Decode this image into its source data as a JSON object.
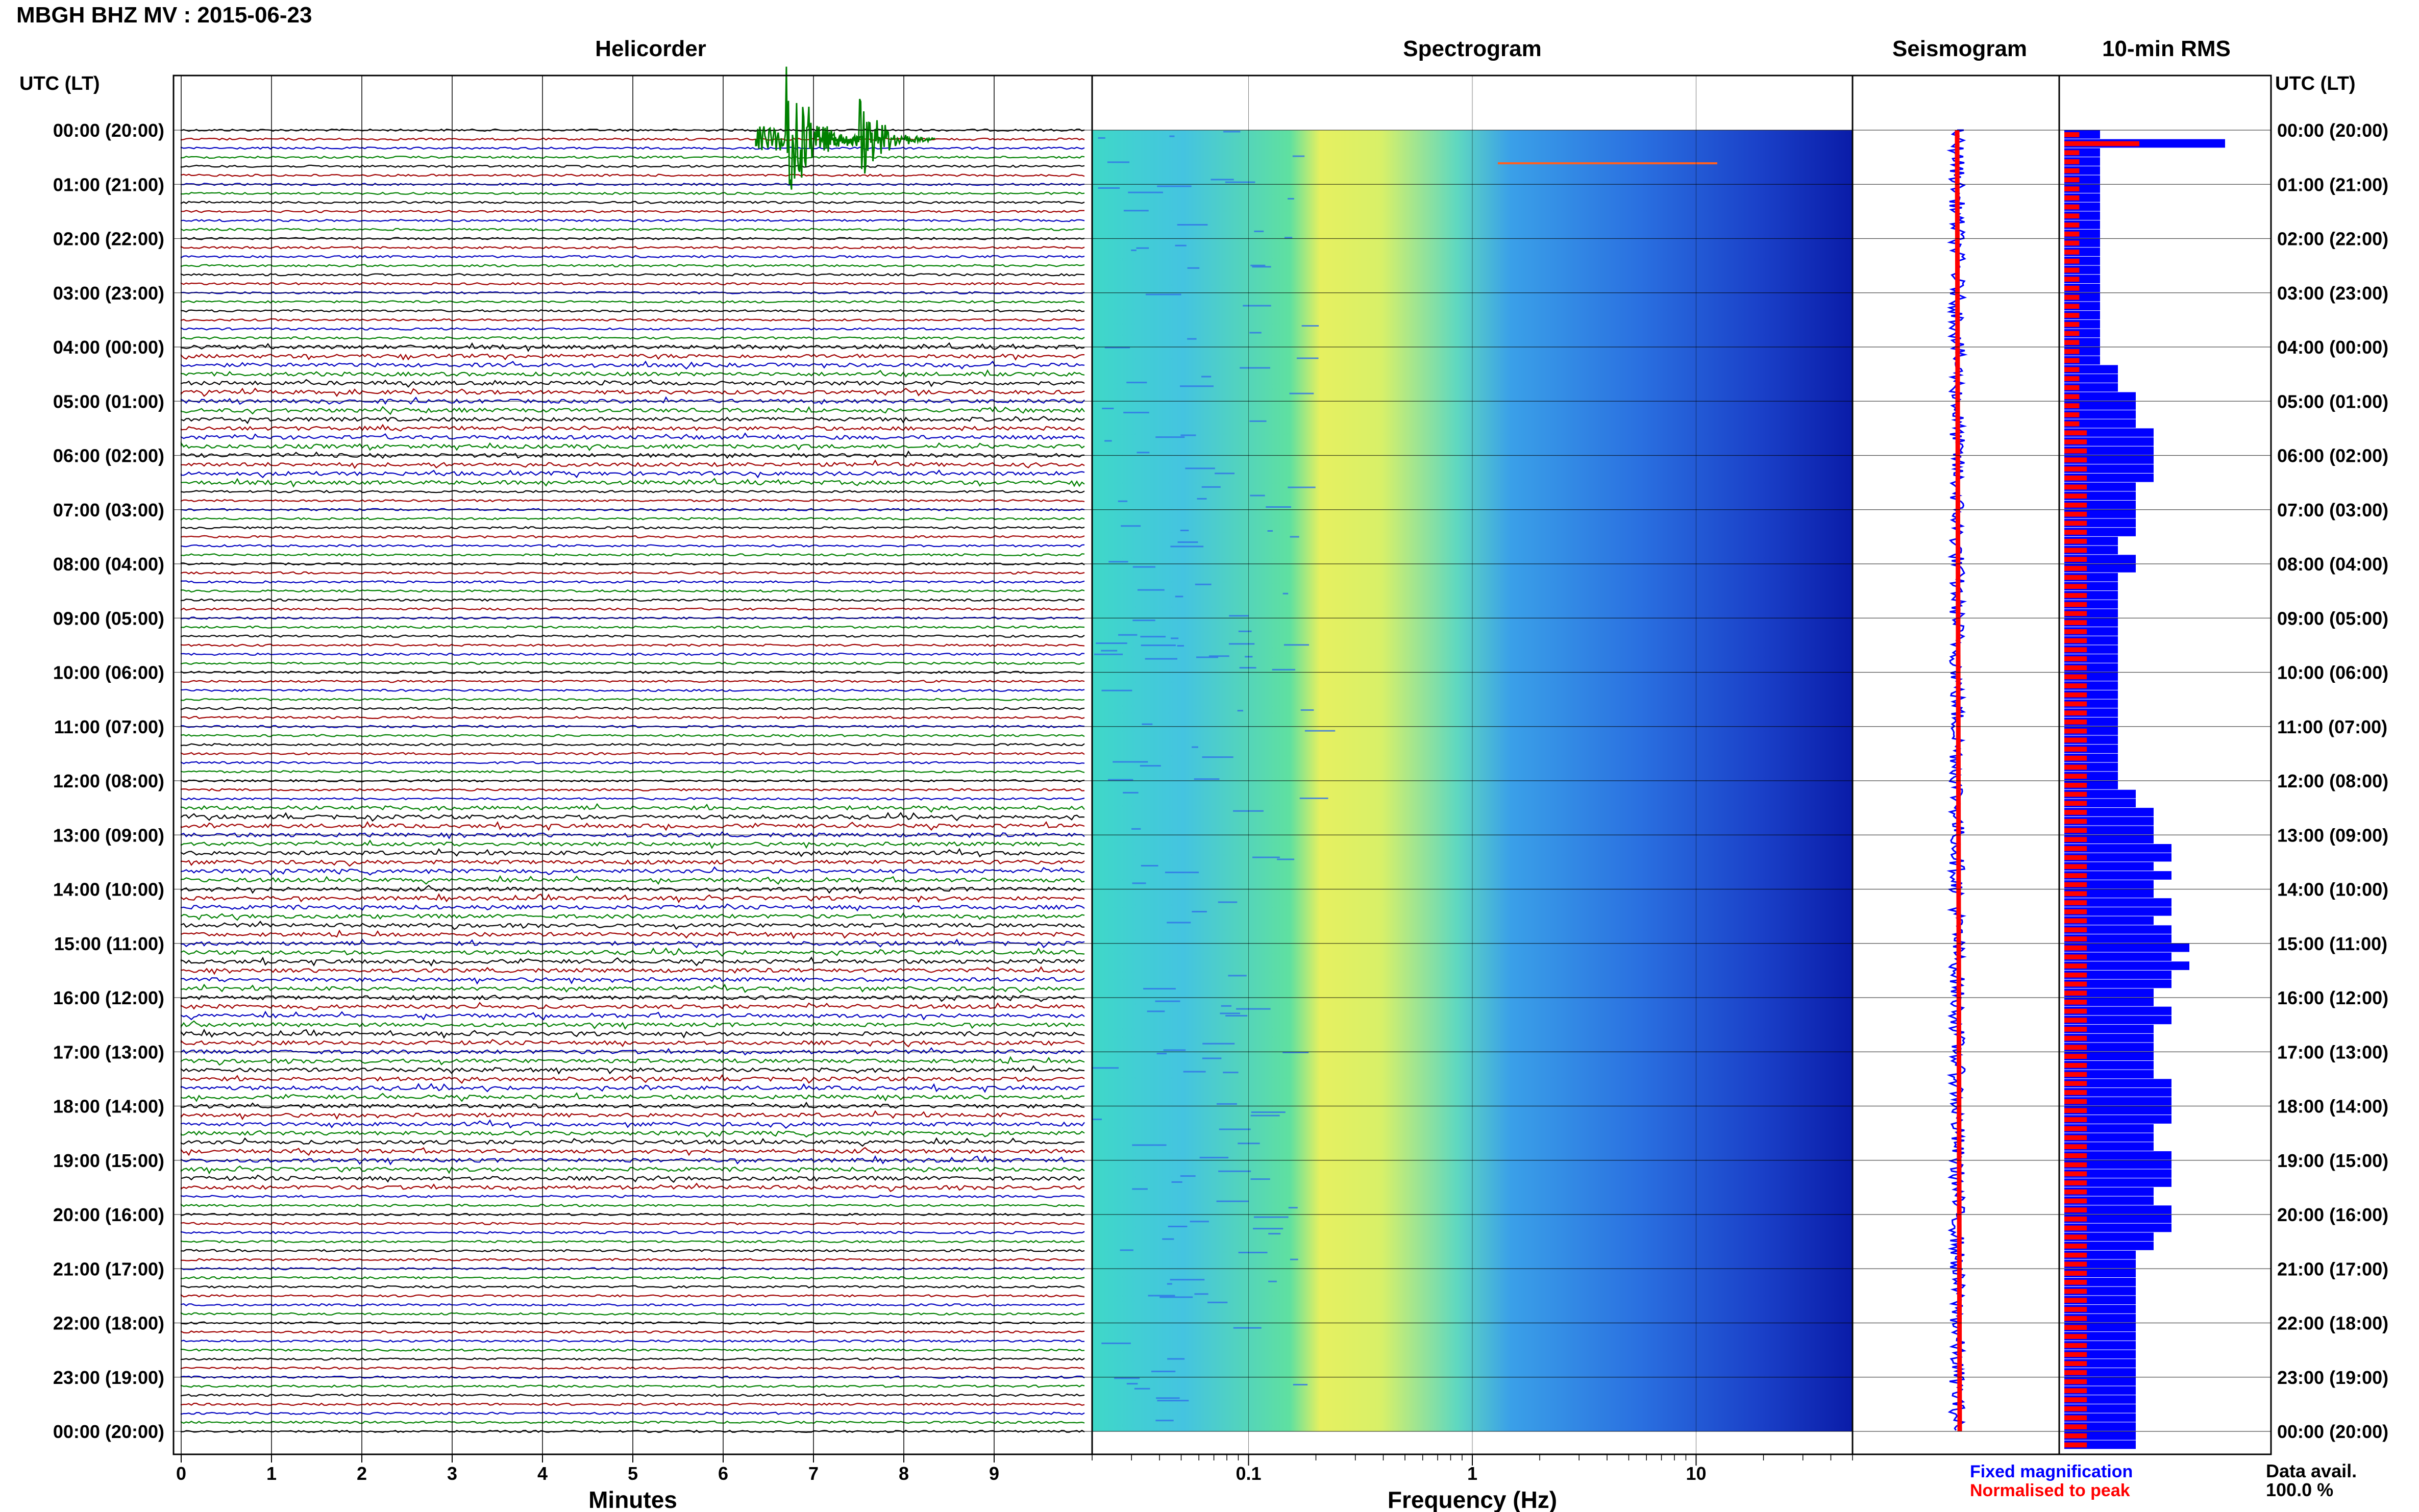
{
  "station_title": "MBGH BHZ MV : 2015-06-23",
  "panels": {
    "helicorder": "Helicorder",
    "spectrogram": "Spectrogram",
    "seismogram": "Seismogram",
    "rms": "10-min RMS"
  },
  "time_axis_header": "UTC (LT)",
  "time_labels": [
    "00:00 (20:00)",
    "01:00 (21:00)",
    "02:00 (22:00)",
    "03:00 (23:00)",
    "04:00 (00:00)",
    "05:00 (01:00)",
    "06:00 (02:00)",
    "07:00 (03:00)",
    "08:00 (04:00)",
    "09:00 (05:00)",
    "10:00 (06:00)",
    "11:00 (07:00)",
    "12:00 (08:00)",
    "13:00 (09:00)",
    "14:00 (10:00)",
    "15:00 (11:00)",
    "16:00 (12:00)",
    "17:00 (13:00)",
    "18:00 (14:00)",
    "19:00 (15:00)",
    "20:00 (16:00)",
    "21:00 (17:00)",
    "22:00 (18:00)",
    "23:00 (19:00)",
    "00:00 (20:00)"
  ],
  "helicorder_xlabel": "Minutes",
  "helicorder_xticks": [
    "0",
    "1",
    "2",
    "3",
    "4",
    "5",
    "6",
    "7",
    "8",
    "9"
  ],
  "spectrogram_xlabel": "Frequency (Hz)",
  "spectrogram_xticks": [
    "0.1",
    "1",
    "10"
  ],
  "legend": {
    "fixed": "Fixed magnification",
    "normalised": "Normalised to peak"
  },
  "data_avail_label": "Data avail.",
  "data_avail_value": "100.0 %",
  "colors": {
    "trace_cycle": [
      "#000000",
      "#a00000",
      "#0000c0",
      "#008000"
    ],
    "fixed": "#0000ff",
    "normalised": "#ff0000"
  },
  "chart_data": {
    "type": "heatmap",
    "helicorder": {
      "x_range_minutes": [
        0,
        10
      ],
      "lines_per_hour": 6,
      "hours": 24,
      "events": [
        {
          "hour": 0,
          "line": 1,
          "minute": 6.7,
          "amplitude": "large"
        },
        {
          "hour": 0,
          "line": 1,
          "minute": 7.5,
          "amplitude": "large"
        }
      ]
    },
    "spectrogram": {
      "freq_range_hz": [
        0.02,
        50
      ],
      "xscale": "log",
      "colormap": "jet"
    },
    "rms_10min": {
      "fixed_magnification": [
        2,
        9,
        2,
        2,
        2,
        2,
        2,
        2,
        2,
        2,
        2,
        2,
        2,
        2,
        2,
        2,
        2,
        2,
        2,
        2,
        2,
        2,
        2,
        2,
        2,
        2,
        3,
        3,
        3,
        4,
        4,
        4,
        4,
        5,
        5,
        5,
        5,
        5,
        5,
        4,
        4,
        4,
        4,
        4,
        4,
        3,
        3,
        4,
        4,
        3,
        3,
        3,
        3,
        3,
        3,
        3,
        3,
        3,
        3,
        3,
        3,
        3,
        3,
        3,
        3,
        3,
        3,
        3,
        3,
        3,
        3,
        3,
        3,
        4,
        4,
        5,
        5,
        5,
        5,
        6,
        6,
        5,
        6,
        5,
        5,
        6,
        6,
        5,
        6,
        6,
        7,
        6,
        7,
        6,
        6,
        5,
        5,
        6,
        6,
        5,
        5,
        5,
        5,
        5,
        5,
        6,
        6,
        6,
        6,
        6,
        5,
        5,
        5,
        6,
        6,
        6,
        6,
        5,
        5,
        6,
        6,
        6,
        5,
        5,
        4,
        4,
        4,
        4,
        4,
        4,
        4,
        4,
        4,
        4,
        4,
        4,
        4,
        4,
        4,
        4,
        4,
        4,
        4,
        4,
        4,
        4
      ],
      "normalised_to_peak": [
        2,
        10,
        2,
        2,
        2,
        2,
        2,
        2,
        2,
        2,
        2,
        2,
        2,
        2,
        2,
        2,
        2,
        2,
        2,
        2,
        2,
        2,
        2,
        2,
        2,
        2,
        2,
        2,
        2,
        2,
        2,
        2,
        2,
        3,
        3,
        3,
        3,
        3,
        3,
        3,
        3,
        3,
        3,
        3,
        3,
        3,
        3,
        3,
        3,
        3,
        3,
        3,
        3,
        3,
        3,
        3,
        3,
        3,
        3,
        3,
        3,
        3,
        3,
        3,
        3,
        3,
        3,
        3,
        3,
        3,
        3,
        3,
        3,
        3,
        3,
        3,
        3,
        3,
        3,
        3,
        3,
        3,
        3,
        3,
        3,
        3,
        3,
        3,
        3,
        3,
        3,
        3,
        3,
        3,
        3,
        3,
        3,
        3,
        3,
        3,
        3,
        3,
        3,
        3,
        3,
        3,
        3,
        3,
        3,
        3,
        3,
        3,
        3,
        3,
        3,
        3,
        3,
        3,
        3,
        3,
        3,
        3,
        3,
        3,
        3,
        3,
        3,
        3,
        3,
        3,
        3,
        3,
        3,
        3,
        3,
        3,
        3,
        3,
        3,
        3,
        3,
        3,
        3,
        3,
        3,
        3
      ]
    }
  }
}
